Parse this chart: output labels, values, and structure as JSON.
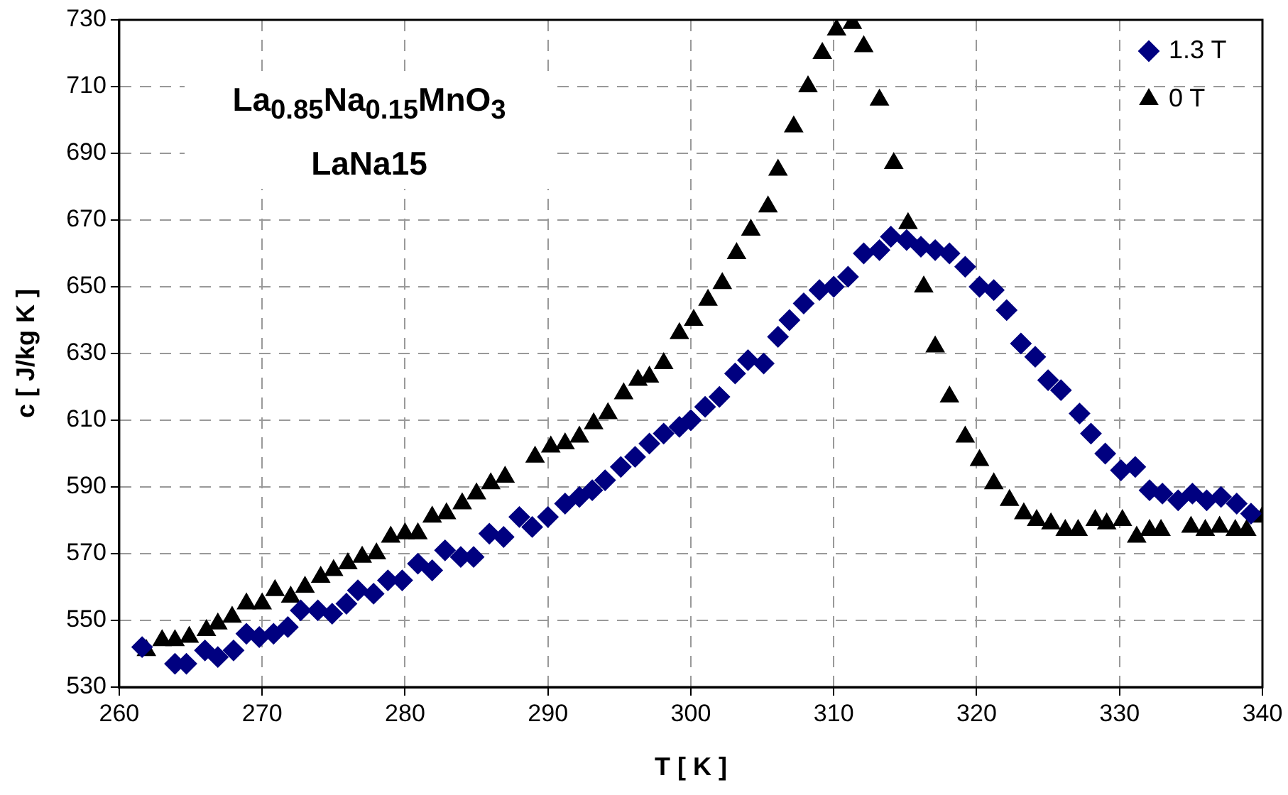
{
  "chart_data": {
    "type": "scatter",
    "xlabel": "T [ K ]",
    "ylabel": "c [ J/kg K ]",
    "annotations": [
      "La$_{0.85}$Na$_{0.15}$MnO$_{3}$",
      "LaNa15"
    ],
    "xlim": [
      260,
      340
    ],
    "xticks": [
      260,
      270,
      280,
      290,
      300,
      310,
      320,
      330,
      340
    ],
    "ylim": [
      530,
      730
    ],
    "yticks": [
      530,
      550,
      570,
      590,
      610,
      630,
      650,
      670,
      690,
      710,
      730
    ],
    "grid": true,
    "legend": "top right",
    "series": [
      {
        "name": "1.3 T",
        "color": "#000080",
        "marker": "diamond",
        "x": [
          261.6,
          263.9,
          264.7,
          266.0,
          266.9,
          268.0,
          268.9,
          269.8,
          270.8,
          271.8,
          272.7,
          273.9,
          274.9,
          275.9,
          276.7,
          277.8,
          278.8,
          279.8,
          280.9,
          281.9,
          282.8,
          283.9,
          284.8,
          285.9,
          286.9,
          288.0,
          288.9,
          290.0,
          291.2,
          292.2,
          293.1,
          294.0,
          295.1,
          296.1,
          297.1,
          298.1,
          299.2,
          300.0,
          301.0,
          302.0,
          303.1,
          304.0,
          305.1,
          306.1,
          306.9,
          307.9,
          309.0,
          310.0,
          311.0,
          312.1,
          313.2,
          314.0,
          315.1,
          316.1,
          317.1,
          318.1,
          319.2,
          320.2,
          321.2,
          322.1,
          323.1,
          324.1,
          325.0,
          325.9,
          327.2,
          328.0,
          329.0,
          330.1,
          331.1,
          332.1,
          333.0,
          334.1,
          335.1,
          336.1,
          337.1,
          338.2,
          339.2
        ],
        "values": [
          542,
          537,
          537,
          541,
          539,
          541,
          546,
          545,
          546,
          548,
          553,
          553,
          552,
          555,
          559,
          558,
          562,
          562,
          567,
          565,
          571,
          569,
          569,
          576,
          575,
          581,
          578,
          581,
          585,
          587,
          589,
          592,
          596,
          599,
          603,
          606,
          608,
          610,
          614,
          617,
          624,
          628,
          627,
          635,
          640,
          645,
          649,
          650,
          653,
          660,
          661,
          665,
          664,
          662,
          661,
          660,
          656,
          650,
          649,
          643,
          633,
          629,
          622,
          619,
          612,
          606,
          600,
          595,
          596,
          589,
          588,
          586,
          588,
          586,
          587,
          585,
          582
        ]
      },
      {
        "name": "0 T",
        "color": "#000000",
        "marker": "triangle",
        "x": [
          261.9,
          263.0,
          263.9,
          264.9,
          266.1,
          266.9,
          267.9,
          268.9,
          270.0,
          270.9,
          272.0,
          273.0,
          274.1,
          275.0,
          276.0,
          277.0,
          278.0,
          279.0,
          280.0,
          280.9,
          281.9,
          282.9,
          284.0,
          285.0,
          286.0,
          287.0,
          289.1,
          290.2,
          291.2,
          292.2,
          293.2,
          294.2,
          295.3,
          296.3,
          297.1,
          298.1,
          299.2,
          300.2,
          301.2,
          302.2,
          303.2,
          304.2,
          305.4,
          306.1,
          307.2,
          308.2,
          309.2,
          310.2,
          311.3,
          312.1,
          313.2,
          314.2,
          315.2,
          316.3,
          317.1,
          318.1,
          319.2,
          320.2,
          321.2,
          322.3,
          323.3,
          324.2,
          325.2,
          326.2,
          327.1,
          328.3,
          329.1,
          330.2,
          331.2,
          332.1,
          332.9,
          335.0,
          336.0,
          337.0,
          338.1,
          338.9,
          340.0
        ],
        "values": [
          541,
          544,
          544,
          545,
          547,
          549,
          551,
          555,
          555,
          559,
          557,
          560,
          563,
          565,
          567,
          569,
          570,
          575,
          576,
          576,
          581,
          582,
          585,
          588,
          591,
          593,
          599,
          602,
          603,
          605,
          609,
          612,
          618,
          622,
          623,
          627,
          636,
          640,
          646,
          651,
          660,
          667,
          674,
          685,
          698,
          710,
          720,
          727,
          729,
          722,
          706,
          687,
          669,
          650,
          632,
          617,
          605,
          598,
          591,
          586,
          582,
          580,
          579,
          577,
          577,
          580,
          579,
          580,
          575,
          577,
          577,
          578,
          577,
          578,
          577,
          577,
          581
        ]
      }
    ]
  }
}
